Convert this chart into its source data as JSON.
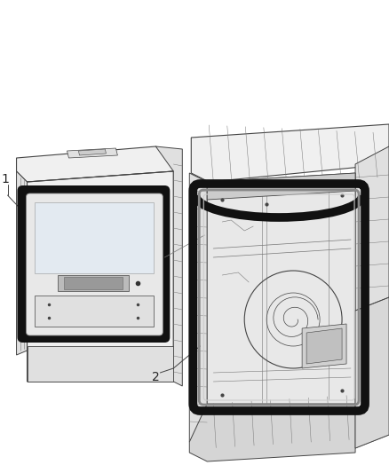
{
  "background_color": "#ffffff",
  "figure_width": 4.38,
  "figure_height": 5.33,
  "dpi": 100,
  "label_1": "1",
  "label_2": "2",
  "label_fontsize": 10,
  "label_color": "#222222",
  "line_color": "#444444",
  "thin_line": "#777777",
  "seal_color": "#111111",
  "light_fill": "#f0f0f0",
  "mid_fill": "#e0e0e0",
  "white_fill": "#ffffff"
}
